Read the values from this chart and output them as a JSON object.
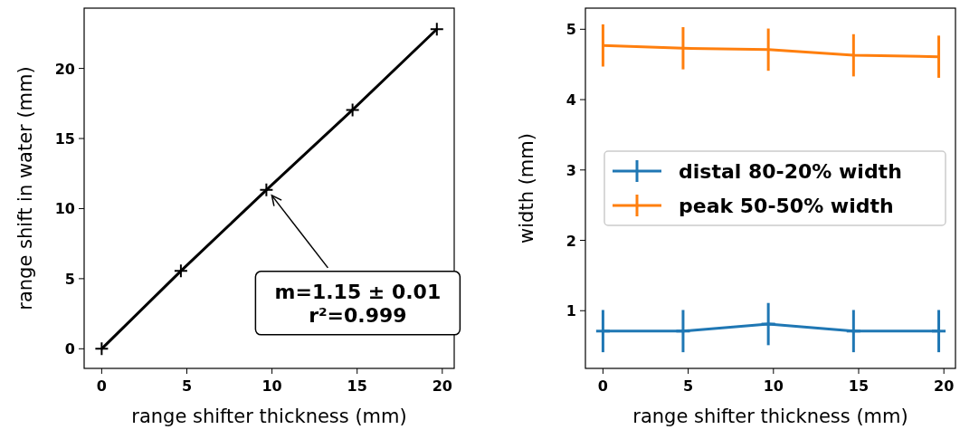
{
  "chart_data": [
    {
      "type": "line",
      "xlabel": "range shifter thickness (mm)",
      "ylabel": "range shift in water (mm)",
      "x": [
        0,
        4.65,
        9.67,
        14.73,
        19.68
      ],
      "series": [
        {
          "color": "#000000",
          "values": [
            0,
            5.55,
            11.33,
            17.04,
            22.8
          ]
        }
      ],
      "marker": "cross",
      "xlim": [
        -1.03,
        20.7
      ],
      "ylim": [
        -1.4,
        24.3
      ],
      "xticks": [
        0,
        5,
        10,
        15,
        20
      ],
      "yticks": [
        0,
        5,
        10,
        15,
        20
      ],
      "annotations": [
        {
          "text": "m=1.15 ± 0.01\nr²=0.999",
          "x": 9.67,
          "y": 11.33
        }
      ]
    },
    {
      "type": "line",
      "xlabel": "range shifter thickness (mm)",
      "ylabel": "width (mm)",
      "x": [
        0,
        4.7,
        9.7,
        14.7,
        19.7
      ],
      "series": [
        {
          "name": "distal 80-20% width",
          "color": "#1f77b4",
          "values": [
            0.71,
            0.71,
            0.81,
            0.71,
            0.71
          ],
          "errors": [
            0.3,
            0.3,
            0.3,
            0.3,
            0.3
          ],
          "xerrors": [
            0.4,
            0.4,
            0.4,
            0.4,
            0.4
          ]
        },
        {
          "name": "peak 50-50% width",
          "color": "#ff7f0e",
          "values": [
            4.77,
            4.73,
            4.71,
            4.63,
            4.61
          ],
          "errors": [
            0.3,
            0.3,
            0.3,
            0.3,
            0.3
          ]
        }
      ],
      "legend": "right",
      "xlim": [
        -1.03,
        20.68
      ],
      "ylim": [
        0.18,
        5.3
      ],
      "xticks": [
        0,
        5,
        10,
        15,
        20
      ],
      "yticks": [
        1,
        2,
        3,
        4,
        5
      ]
    }
  ]
}
